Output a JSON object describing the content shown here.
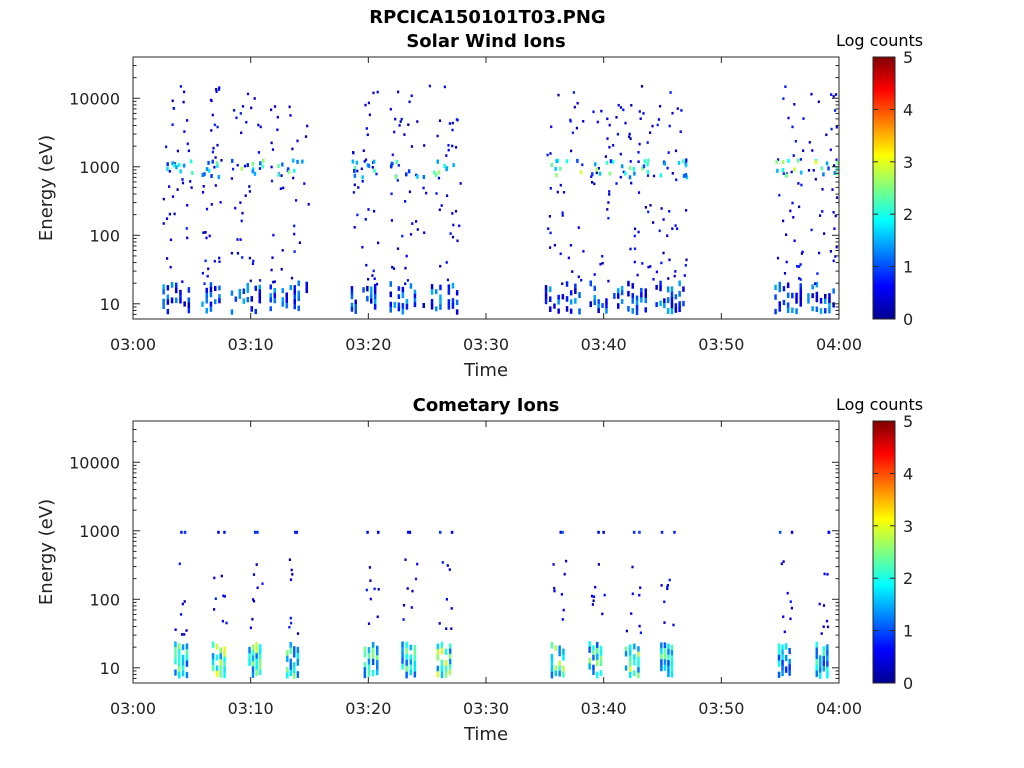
{
  "figure_title": "RPCICA150101T03.PNG",
  "chart_data": [
    {
      "type": "heatmap",
      "title": "Solar Wind Ions",
      "xlabel": "Time",
      "ylabel": "Energy (eV)",
      "y_scale": "log",
      "ylim": [
        6,
        40000
      ],
      "xlim": [
        "03:00",
        "04:00"
      ],
      "x_ticks": [
        "03:00",
        "03:10",
        "03:20",
        "03:30",
        "03:40",
        "03:50",
        "04:00"
      ],
      "y_ticks": [
        "10",
        "100",
        "1000",
        "10000"
      ],
      "colorbar": {
        "label": "Log counts",
        "range": [
          0,
          5
        ],
        "ticks": [
          "0",
          "1",
          "2",
          "3",
          "4",
          "5"
        ],
        "colormap": "jet"
      },
      "bursts": [
        {
          "start_min": 2.5,
          "end_min": 5.0,
          "intensity": 2.0
        },
        {
          "start_min": 5.8,
          "end_min": 7.6,
          "intensity": 2.3
        },
        {
          "start_min": 8.3,
          "end_min": 11.0,
          "intensity": 1.9
        },
        {
          "start_min": 11.6,
          "end_min": 15.0,
          "intensity": 1.8
        },
        {
          "start_min": 18.5,
          "end_min": 20.8,
          "intensity": 1.6
        },
        {
          "start_min": 21.8,
          "end_min": 24.2,
          "intensity": 1.8
        },
        {
          "start_min": 24.6,
          "end_min": 27.8,
          "intensity": 2.1
        },
        {
          "start_min": 35.0,
          "end_min": 38.2,
          "intensity": 2.2
        },
        {
          "start_min": 38.8,
          "end_min": 41.8,
          "intensity": 1.9
        },
        {
          "start_min": 42.0,
          "end_min": 44.2,
          "intensity": 1.8
        },
        {
          "start_min": 44.4,
          "end_min": 47.0,
          "intensity": 2.6
        },
        {
          "start_min": 54.5,
          "end_min": 57.0,
          "intensity": 2.1
        },
        {
          "start_min": 57.3,
          "end_min": 59.8,
          "intensity": 2.2
        }
      ],
      "features": {
        "peak_energy_eV": 1000,
        "low_band_eV": [
          7,
          22
        ]
      }
    },
    {
      "type": "heatmap",
      "title": "Cometary Ions",
      "xlabel": "Time",
      "ylabel": "Energy (eV)",
      "y_scale": "log",
      "ylim": [
        6,
        40000
      ],
      "xlim": [
        "03:00",
        "04:00"
      ],
      "x_ticks": [
        "03:00",
        "03:10",
        "03:20",
        "03:30",
        "03:40",
        "03:50",
        "04:00"
      ],
      "y_ticks": [
        "10",
        "100",
        "1000",
        "10000"
      ],
      "colorbar": {
        "label": "Log counts",
        "range": [
          0,
          5
        ],
        "ticks": [
          "0",
          "1",
          "2",
          "3",
          "4",
          "5"
        ],
        "colormap": "jet"
      },
      "bursts": [
        {
          "start_min": 3.5,
          "end_min": 4.8,
          "intensity": 2.0
        },
        {
          "start_min": 6.7,
          "end_min": 8.0,
          "intensity": 2.4
        },
        {
          "start_min": 9.8,
          "end_min": 11.0,
          "intensity": 2.3
        },
        {
          "start_min": 13.0,
          "end_min": 14.2,
          "intensity": 2.1
        },
        {
          "start_min": 19.6,
          "end_min": 21.0,
          "intensity": 2.0
        },
        {
          "start_min": 22.8,
          "end_min": 24.2,
          "intensity": 2.1
        },
        {
          "start_min": 25.8,
          "end_min": 27.2,
          "intensity": 2.4
        },
        {
          "start_min": 35.5,
          "end_min": 36.8,
          "intensity": 2.2
        },
        {
          "start_min": 38.7,
          "end_min": 40.0,
          "intensity": 2.0
        },
        {
          "start_min": 41.8,
          "end_min": 43.2,
          "intensity": 2.3
        },
        {
          "start_min": 44.8,
          "end_min": 46.0,
          "intensity": 1.9
        },
        {
          "start_min": 54.8,
          "end_min": 56.0,
          "intensity": 1.6
        },
        {
          "start_min": 58.0,
          "end_min": 59.2,
          "intensity": 1.8
        }
      ],
      "features": {
        "peak_energy_eV": 15,
        "low_band_eV": [
          7,
          25
        ]
      }
    }
  ]
}
